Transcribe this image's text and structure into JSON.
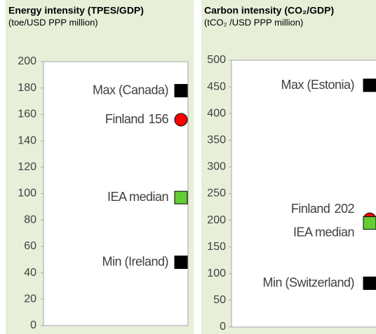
{
  "chart_data": [
    {
      "type": "dot",
      "title": "Energy intensity (TPES/GDP)",
      "subtitle": "(toe/USD PPP million)",
      "ylim": [
        0,
        200
      ],
      "yticks": [
        0,
        20,
        40,
        60,
        80,
        100,
        120,
        140,
        160,
        180,
        200
      ],
      "points": [
        {
          "label": "Max (Canada)",
          "value": 178,
          "color": "#000000",
          "marker": "square",
          "value_shown": false
        },
        {
          "label": "Finland",
          "value": 156,
          "color": "#ff0000",
          "marker": "circle",
          "value_shown": true
        },
        {
          "label": "IEA median",
          "value": 97,
          "color": "#66cc33",
          "marker": "square",
          "value_shown": false
        },
        {
          "label": "Min (Ireland)",
          "value": 48,
          "color": "#000000",
          "marker": "square",
          "value_shown": false
        }
      ]
    },
    {
      "type": "dot",
      "title": "Carbon intensity (CO₂/GDP)",
      "subtitle": "(tCO₂ /USD PPP million)",
      "ylim": [
        0,
        500
      ],
      "yticks": [
        0,
        50,
        100,
        150,
        200,
        250,
        300,
        350,
        400,
        450,
        500
      ],
      "points": [
        {
          "label": "Max (Estonia)",
          "value": 453,
          "color": "#000000",
          "marker": "square",
          "value_shown": false
        },
        {
          "label": "Finland",
          "value": 202,
          "color": "#ff0000",
          "marker": "circle",
          "value_shown": true
        },
        {
          "label": "IEA median",
          "value": 195,
          "color": "#66cc33",
          "marker": "square",
          "value_shown": false
        },
        {
          "label": "Min (Switzerland)",
          "value": 82,
          "color": "#000000",
          "marker": "square",
          "value_shown": false
        }
      ]
    }
  ]
}
